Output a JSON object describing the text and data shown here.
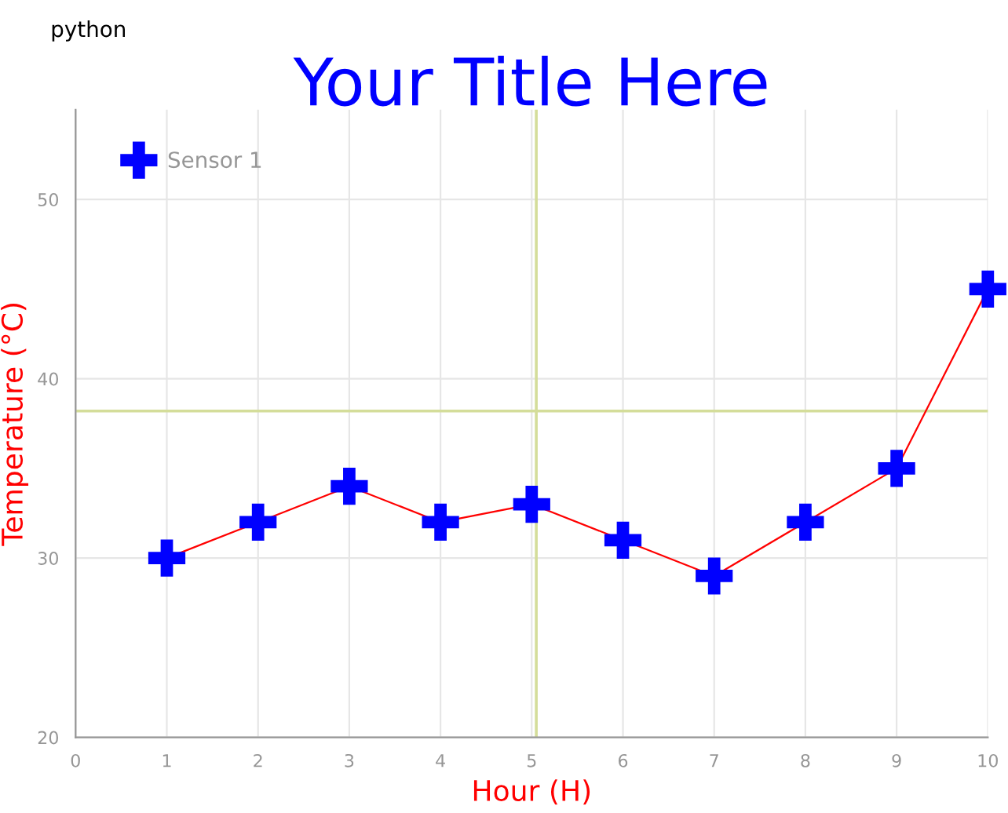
{
  "chart_data": {
    "type": "line",
    "title": "Your Title Here",
    "xlabel": "Hour (H)",
    "ylabel": "Temperature (°C)",
    "x": [
      1,
      2,
      3,
      4,
      5,
      6,
      7,
      8,
      9,
      10
    ],
    "series": [
      {
        "name": "Sensor 1",
        "color": "#ff0000",
        "colors": [
          "#0000ff",
          "#0000ff",
          "#0000ff",
          "#0000ff",
          "#0000ff",
          "#0000ff",
          "#0000ff",
          "#0000ff",
          "#0000ff",
          "#0000ff"
        ],
        "values": [
          30,
          32,
          34,
          32,
          33,
          31,
          29,
          32,
          35,
          45
        ]
      }
    ],
    "xlim": [
      0,
      10
    ],
    "xticks": [
      0,
      1,
      2,
      3,
      4,
      5,
      6,
      7,
      8,
      9,
      10
    ],
    "ylim": [
      20,
      55
    ],
    "yticks": [
      20,
      30,
      40,
      50
    ],
    "ref_lines": [
      {
        "axis": "x",
        "value": 5.05,
        "color": "#d4dd9a"
      },
      {
        "axis": "y",
        "value": 38.2,
        "color": "#d4dd9a"
      }
    ],
    "annotations": [
      "python"
    ],
    "grid": true,
    "legend": "top left",
    "marker": "cross",
    "line_style": "solid"
  }
}
